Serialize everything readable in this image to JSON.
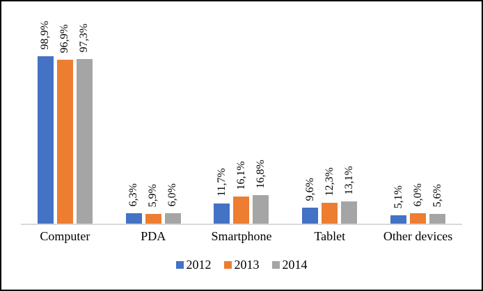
{
  "chart_data": {
    "type": "bar",
    "title": "",
    "categories": [
      "Computer",
      "PDA",
      "Smartphone",
      "Tablet",
      "Other devices"
    ],
    "series": [
      {
        "name": "2012",
        "color": "#4472C4",
        "values": [
          98.9,
          6.3,
          11.7,
          9.6,
          5.1
        ],
        "labels": [
          "98,9%",
          "6,3%",
          "11,7%",
          "9,6%",
          "5,1%"
        ]
      },
      {
        "name": "2013",
        "color": "#ED7D31",
        "values": [
          96.9,
          5.9,
          16.1,
          12.3,
          6.0
        ],
        "labels": [
          "96,9%",
          "5,9%",
          "16,1%",
          "12,3%",
          "6,0%"
        ]
      },
      {
        "name": "2014",
        "color": "#A5A5A5",
        "values": [
          97.3,
          6.0,
          16.8,
          13.1,
          5.6
        ],
        "labels": [
          "97,3%",
          "6,0%",
          "16,8%",
          "13,1%",
          "5,6%"
        ]
      }
    ],
    "ylim": [
      0,
      100
    ],
    "grid": false,
    "value_axis_visible": false,
    "legend_position": "bottom",
    "axis_line_color": "#D9D9D9",
    "frame_color": "#000000",
    "background_color": "#FFFFFF"
  }
}
